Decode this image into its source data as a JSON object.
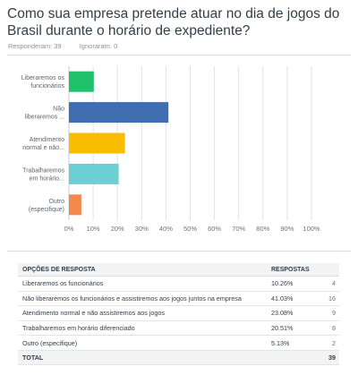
{
  "question": "Como sua empresa pretende atuar no dia de jogos do Brasil durante o horário de expediente?",
  "stats": {
    "answered": "Responderam: 39",
    "skipped": "Ignoraram: 0"
  },
  "chart_data": {
    "type": "bar",
    "orientation": "horizontal",
    "categories": [
      "Liberaremos os funcionários",
      "Não liberaremos ...",
      "Atendimento normal e não...",
      "Trabalharemos em horário...",
      "Outro (especifique)"
    ],
    "category_label_lines": [
      [
        "Liberaremos os",
        "funcionários"
      ],
      [
        "Não",
        "liberaremos ..."
      ],
      [
        "Atendimento",
        "normal e não..."
      ],
      [
        "Trabalharemos",
        "em horário..."
      ],
      [
        "Outro",
        "(especifique)"
      ]
    ],
    "values": [
      10.26,
      41.03,
      23.08,
      20.51,
      5.13
    ],
    "colors": [
      "#1fc26b",
      "#3e6db0",
      "#f8bd00",
      "#6ccfd3",
      "#f4894c"
    ],
    "xlim": [
      0,
      100
    ],
    "xticks": [
      "0%",
      "10%",
      "20%",
      "30%",
      "40%",
      "50%",
      "60%",
      "70%",
      "80%",
      "90%",
      "100%"
    ],
    "grid": true
  },
  "table": {
    "headers": {
      "option": "OPÇÕES DE RESPOSTA",
      "responses": "RESPOSTAS"
    },
    "rows": [
      {
        "label": "Liberaremos os funcionários",
        "percent": "10.26%",
        "count": "4"
      },
      {
        "label": "Não liberaremos os funcionários e assistiremos aos jogos juntos na empresa",
        "percent": "41.03%",
        "count": "16"
      },
      {
        "label": "Atendimento normal e não assistiremos aos jogos",
        "percent": "23.08%",
        "count": "9"
      },
      {
        "label": "Trabalharemos em horário diferenciado",
        "percent": "20.51%",
        "count": "8"
      },
      {
        "label": "Outro (especifique)",
        "percent": "5.13%",
        "count": "2"
      }
    ],
    "total": {
      "label": "TOTAL",
      "count": "39"
    }
  }
}
